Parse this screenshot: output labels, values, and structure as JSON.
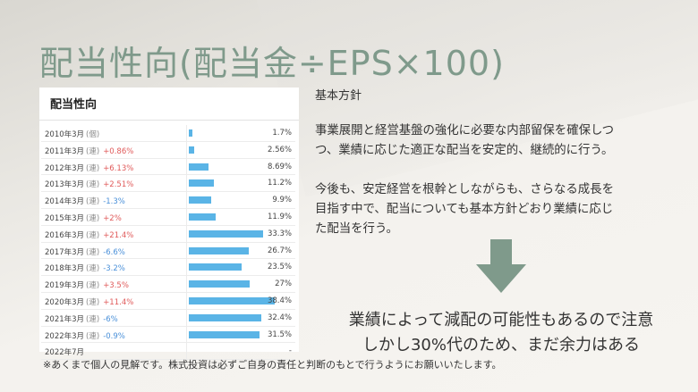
{
  "title": "配当性向(配当金÷EPS×100)",
  "table": {
    "title": "配当性向",
    "max_value": 40,
    "rows": [
      {
        "year": "2010年3月",
        "kind": "(個)",
        "change": "",
        "direction": "",
        "value": 1.7,
        "value_label": "1.7%"
      },
      {
        "year": "2011年3月",
        "kind": "(連)",
        "change": "+0.86%",
        "direction": "up",
        "value": 2.56,
        "value_label": "2.56%"
      },
      {
        "year": "2012年3月",
        "kind": "(連)",
        "change": "+6.13%",
        "direction": "up",
        "value": 8.69,
        "value_label": "8.69%"
      },
      {
        "year": "2013年3月",
        "kind": "(連)",
        "change": "+2.51%",
        "direction": "up",
        "value": 11.2,
        "value_label": "11.2%"
      },
      {
        "year": "2014年3月",
        "kind": "(連)",
        "change": "-1.3%",
        "direction": "down",
        "value": 9.9,
        "value_label": "9.9%"
      },
      {
        "year": "2015年3月",
        "kind": "(連)",
        "change": "+2%",
        "direction": "up",
        "value": 11.9,
        "value_label": "11.9%"
      },
      {
        "year": "2016年3月",
        "kind": "(連)",
        "change": "+21.4%",
        "direction": "up",
        "value": 33.3,
        "value_label": "33.3%"
      },
      {
        "year": "2017年3月",
        "kind": "(連)",
        "change": "-6.6%",
        "direction": "down",
        "value": 26.7,
        "value_label": "26.7%"
      },
      {
        "year": "2018年3月",
        "kind": "(連)",
        "change": "-3.2%",
        "direction": "down",
        "value": 23.5,
        "value_label": "23.5%"
      },
      {
        "year": "2019年3月",
        "kind": "(連)",
        "change": "+3.5%",
        "direction": "up",
        "value": 27,
        "value_label": "27%"
      },
      {
        "year": "2020年3月",
        "kind": "(連)",
        "change": "+11.4%",
        "direction": "up",
        "value": 38.4,
        "value_label": "38.4%"
      },
      {
        "year": "2021年3月",
        "kind": "(連)",
        "change": "-6%",
        "direction": "down",
        "value": 32.4,
        "value_label": "32.4%"
      },
      {
        "year": "2022年3月",
        "kind": "(連)",
        "change": "-0.9%",
        "direction": "down",
        "value": 31.5,
        "value_label": "31.5%"
      },
      {
        "year": "2022年7月",
        "kind": "",
        "change": "",
        "direction": "",
        "value": null,
        "value_label": "-"
      }
    ]
  },
  "policy": {
    "heading": "基本方針",
    "paragraph1_line1": "事業展開と経営基盤の強化に必要な内部留保を確保しつ",
    "paragraph1_line2": "つ、業績に応じた適正な配当を安定的、継続的に行う。",
    "paragraph2_line1": "今後も、安定経営を根幹としながらも、さらなる成長を",
    "paragraph2_line2": "目指す中で、配当についても基本方針どおり業績に応じ",
    "paragraph2_line3": "た配当を行う。"
  },
  "arrow_color": "#7f9a8b",
  "conclusion": {
    "line1": "業績によって減配の可能性もあるので注意",
    "line2": "しかし30%代のため、まだ余力はある"
  },
  "disclaimer": "※あくまで個人の見解です。株式投資は必ずご自身の責任と判断のもとで行うようにお願いいたします。"
}
